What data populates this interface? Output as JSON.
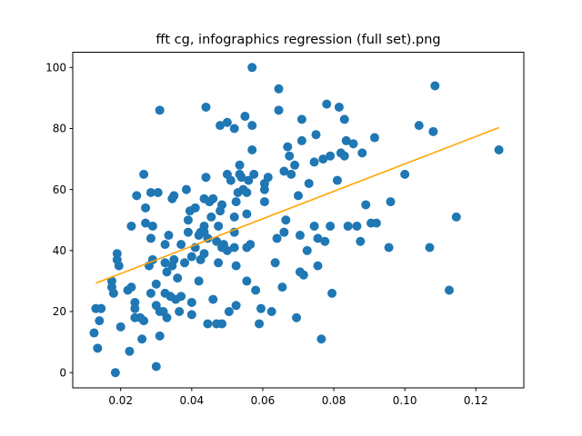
{
  "chart_data": {
    "type": "scatter",
    "title": "fft cg, infographics regression (full set).png",
    "xlabel": "",
    "ylabel": "",
    "xlim": [
      0.0065,
      0.1335
    ],
    "ylim": [
      -5,
      105
    ],
    "xticks": [
      0.02,
      0.04,
      0.06,
      0.08,
      0.1,
      0.12
    ],
    "xtick_labels": [
      "0.02",
      "0.04",
      "0.06",
      "0.08",
      "0.10",
      "0.12"
    ],
    "yticks": [
      0,
      20,
      40,
      60,
      80,
      100
    ],
    "ytick_labels": [
      "0",
      "20",
      "40",
      "60",
      "80",
      "100"
    ],
    "grid": false,
    "colors": {
      "points": "#1f77b4",
      "regression": "#ffa500"
    },
    "regression_line": {
      "x": [
        0.013,
        0.1265
      ],
      "y": [
        29.3,
        80.3
      ]
    },
    "points": [
      [
        0.0125,
        13
      ],
      [
        0.013,
        21
      ],
      [
        0.0135,
        8
      ],
      [
        0.014,
        17
      ],
      [
        0.0145,
        21
      ],
      [
        0.0175,
        30
      ],
      [
        0.0175,
        28
      ],
      [
        0.018,
        26
      ],
      [
        0.0185,
        0
      ],
      [
        0.019,
        39
      ],
      [
        0.019,
        37
      ],
      [
        0.0195,
        35
      ],
      [
        0.02,
        15
      ],
      [
        0.022,
        27
      ],
      [
        0.0225,
        7
      ],
      [
        0.023,
        28
      ],
      [
        0.023,
        48
      ],
      [
        0.024,
        23
      ],
      [
        0.024,
        21
      ],
      [
        0.024,
        18
      ],
      [
        0.0245,
        58
      ],
      [
        0.0255,
        18
      ],
      [
        0.026,
        11
      ],
      [
        0.0265,
        17
      ],
      [
        0.0265,
        65
      ],
      [
        0.027,
        49
      ],
      [
        0.027,
        54
      ],
      [
        0.028,
        35
      ],
      [
        0.0285,
        26
      ],
      [
        0.029,
        37
      ],
      [
        0.0285,
        59
      ],
      [
        0.0285,
        44
      ],
      [
        0.029,
        48
      ],
      [
        0.03,
        2
      ],
      [
        0.03,
        29
      ],
      [
        0.03,
        22
      ],
      [
        0.0305,
        59
      ],
      [
        0.031,
        86
      ],
      [
        0.031,
        20
      ],
      [
        0.031,
        12
      ],
      [
        0.032,
        20
      ],
      [
        0.0325,
        36
      ],
      [
        0.0325,
        26
      ],
      [
        0.0325,
        42
      ],
      [
        0.033,
        33
      ],
      [
        0.033,
        18
      ],
      [
        0.0335,
        45
      ],
      [
        0.034,
        25
      ],
      [
        0.0345,
        35
      ],
      [
        0.035,
        37
      ],
      [
        0.0345,
        57
      ],
      [
        0.035,
        58
      ],
      [
        0.0355,
        24
      ],
      [
        0.036,
        31
      ],
      [
        0.0365,
        20
      ],
      [
        0.037,
        42
      ],
      [
        0.037,
        25
      ],
      [
        0.038,
        36
      ],
      [
        0.0385,
        60
      ],
      [
        0.039,
        50
      ],
      [
        0.039,
        46
      ],
      [
        0.04,
        23
      ],
      [
        0.04,
        19
      ],
      [
        0.0395,
        53
      ],
      [
        0.04,
        38
      ],
      [
        0.041,
        54
      ],
      [
        0.041,
        41
      ],
      [
        0.042,
        45
      ],
      [
        0.0425,
        46
      ],
      [
        0.042,
        30
      ],
      [
        0.0425,
        37
      ],
      [
        0.0435,
        48
      ],
      [
        0.0435,
        46
      ],
      [
        0.0435,
        39
      ],
      [
        0.044,
        64
      ],
      [
        0.0435,
        57
      ],
      [
        0.0445,
        44
      ],
      [
        0.044,
        87
      ],
      [
        0.0445,
        16
      ],
      [
        0.045,
        56
      ],
      [
        0.046,
        57
      ],
      [
        0.046,
        24
      ],
      [
        0.0455,
        51
      ],
      [
        0.047,
        16
      ],
      [
        0.047,
        43
      ],
      [
        0.048,
        81
      ],
      [
        0.048,
        53
      ],
      [
        0.0485,
        41
      ],
      [
        0.0475,
        36
      ],
      [
        0.0475,
        48
      ],
      [
        0.0485,
        55
      ],
      [
        0.0485,
        16
      ],
      [
        0.049,
        42
      ],
      [
        0.05,
        65
      ],
      [
        0.05,
        40
      ],
      [
        0.05,
        82
      ],
      [
        0.0505,
        20
      ],
      [
        0.051,
        63
      ],
      [
        0.052,
        80
      ],
      [
        0.052,
        46
      ],
      [
        0.052,
        51
      ],
      [
        0.052,
        41
      ],
      [
        0.0525,
        35
      ],
      [
        0.0525,
        22
      ],
      [
        0.0525,
        56
      ],
      [
        0.053,
        59
      ],
      [
        0.0535,
        65
      ],
      [
        0.0535,
        68
      ],
      [
        0.054,
        64
      ],
      [
        0.0545,
        60
      ],
      [
        0.055,
        84
      ],
      [
        0.0555,
        41
      ],
      [
        0.0555,
        59
      ],
      [
        0.0555,
        52
      ],
      [
        0.056,
        63
      ],
      [
        0.0555,
        30
      ],
      [
        0.0565,
        42
      ],
      [
        0.057,
        100
      ],
      [
        0.057,
        73
      ],
      [
        0.057,
        81
      ],
      [
        0.0575,
        65
      ],
      [
        0.058,
        27
      ],
      [
        0.059,
        16
      ],
      [
        0.0595,
        21
      ],
      [
        0.0605,
        60
      ],
      [
        0.0605,
        62
      ],
      [
        0.0605,
        56
      ],
      [
        0.0615,
        64
      ],
      [
        0.0625,
        20
      ],
      [
        0.0635,
        36
      ],
      [
        0.064,
        44
      ],
      [
        0.0645,
        93
      ],
      [
        0.0645,
        86
      ],
      [
        0.0655,
        28
      ],
      [
        0.066,
        46
      ],
      [
        0.0665,
        50
      ],
      [
        0.066,
        66
      ],
      [
        0.067,
        74
      ],
      [
        0.0675,
        71
      ],
      [
        0.068,
        65
      ],
      [
        0.069,
        68
      ],
      [
        0.0695,
        18
      ],
      [
        0.0705,
        45
      ],
      [
        0.0705,
        33
      ],
      [
        0.071,
        76
      ],
      [
        0.07,
        58
      ],
      [
        0.071,
        83
      ],
      [
        0.0715,
        32
      ],
      [
        0.0725,
        40
      ],
      [
        0.073,
        62
      ],
      [
        0.0745,
        48
      ],
      [
        0.0745,
        69
      ],
      [
        0.075,
        78
      ],
      [
        0.0755,
        44
      ],
      [
        0.0755,
        35
      ],
      [
        0.0765,
        11
      ],
      [
        0.077,
        70
      ],
      [
        0.0775,
        43
      ],
      [
        0.078,
        88
      ],
      [
        0.079,
        71
      ],
      [
        0.079,
        48
      ],
      [
        0.0795,
        26
      ],
      [
        0.081,
        63
      ],
      [
        0.0815,
        87
      ],
      [
        0.082,
        72
      ],
      [
        0.083,
        83
      ],
      [
        0.083,
        71
      ],
      [
        0.0835,
        76
      ],
      [
        0.084,
        48
      ],
      [
        0.0855,
        75
      ],
      [
        0.0865,
        48
      ],
      [
        0.0875,
        43
      ],
      [
        0.088,
        72
      ],
      [
        0.089,
        55
      ],
      [
        0.0905,
        49
      ],
      [
        0.0915,
        77
      ],
      [
        0.092,
        49
      ],
      [
        0.0955,
        41
      ],
      [
        0.096,
        56
      ],
      [
        0.1,
        65
      ],
      [
        0.104,
        81
      ],
      [
        0.107,
        41
      ],
      [
        0.108,
        79
      ],
      [
        0.1085,
        94
      ],
      [
        0.1125,
        27
      ],
      [
        0.1145,
        51
      ],
      [
        0.1265,
        73
      ]
    ]
  }
}
